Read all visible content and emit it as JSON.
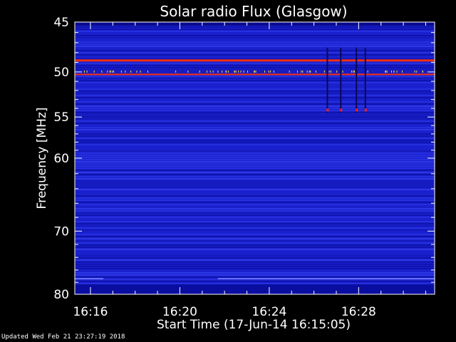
{
  "chart_data": {
    "type": "heatmap",
    "title": "Solar radio Flux (Glasgow)",
    "xlabel": "Start Time (17-Jun-14 16:15:05)",
    "ylabel": "Frequency [MHz]",
    "x_range_minutes": [
      15.3,
      31.4
    ],
    "y_range": [
      45,
      80
    ],
    "y_scale": "log",
    "x_ticks": [
      {
        "minute": 16,
        "label": "16:16"
      },
      {
        "minute": 20,
        "label": "16:20"
      },
      {
        "minute": 24,
        "label": "16:24"
      },
      {
        "minute": 28,
        "label": "16:28"
      }
    ],
    "y_ticks": [
      {
        "value": 45,
        "label": "45"
      },
      {
        "value": 50,
        "label": "50"
      },
      {
        "value": 55,
        "label": "55"
      },
      {
        "value": 60,
        "label": "60"
      },
      {
        "value": 70,
        "label": "70"
      },
      {
        "value": 80,
        "label": "80"
      }
    ],
    "y_minor_ticks": [
      46,
      47,
      48,
      49,
      51,
      52,
      53,
      54,
      56,
      57,
      58,
      59,
      62,
      64,
      66,
      68,
      72,
      74,
      76,
      78
    ],
    "bright_bands_mhz": [
      48.8,
      50.3
    ],
    "colors": {
      "background": "#1b20c9",
      "band": "#ff3010",
      "hot": "#ffd040"
    }
  },
  "footer": "Updated Wed Feb 21 23:27:19 2018"
}
